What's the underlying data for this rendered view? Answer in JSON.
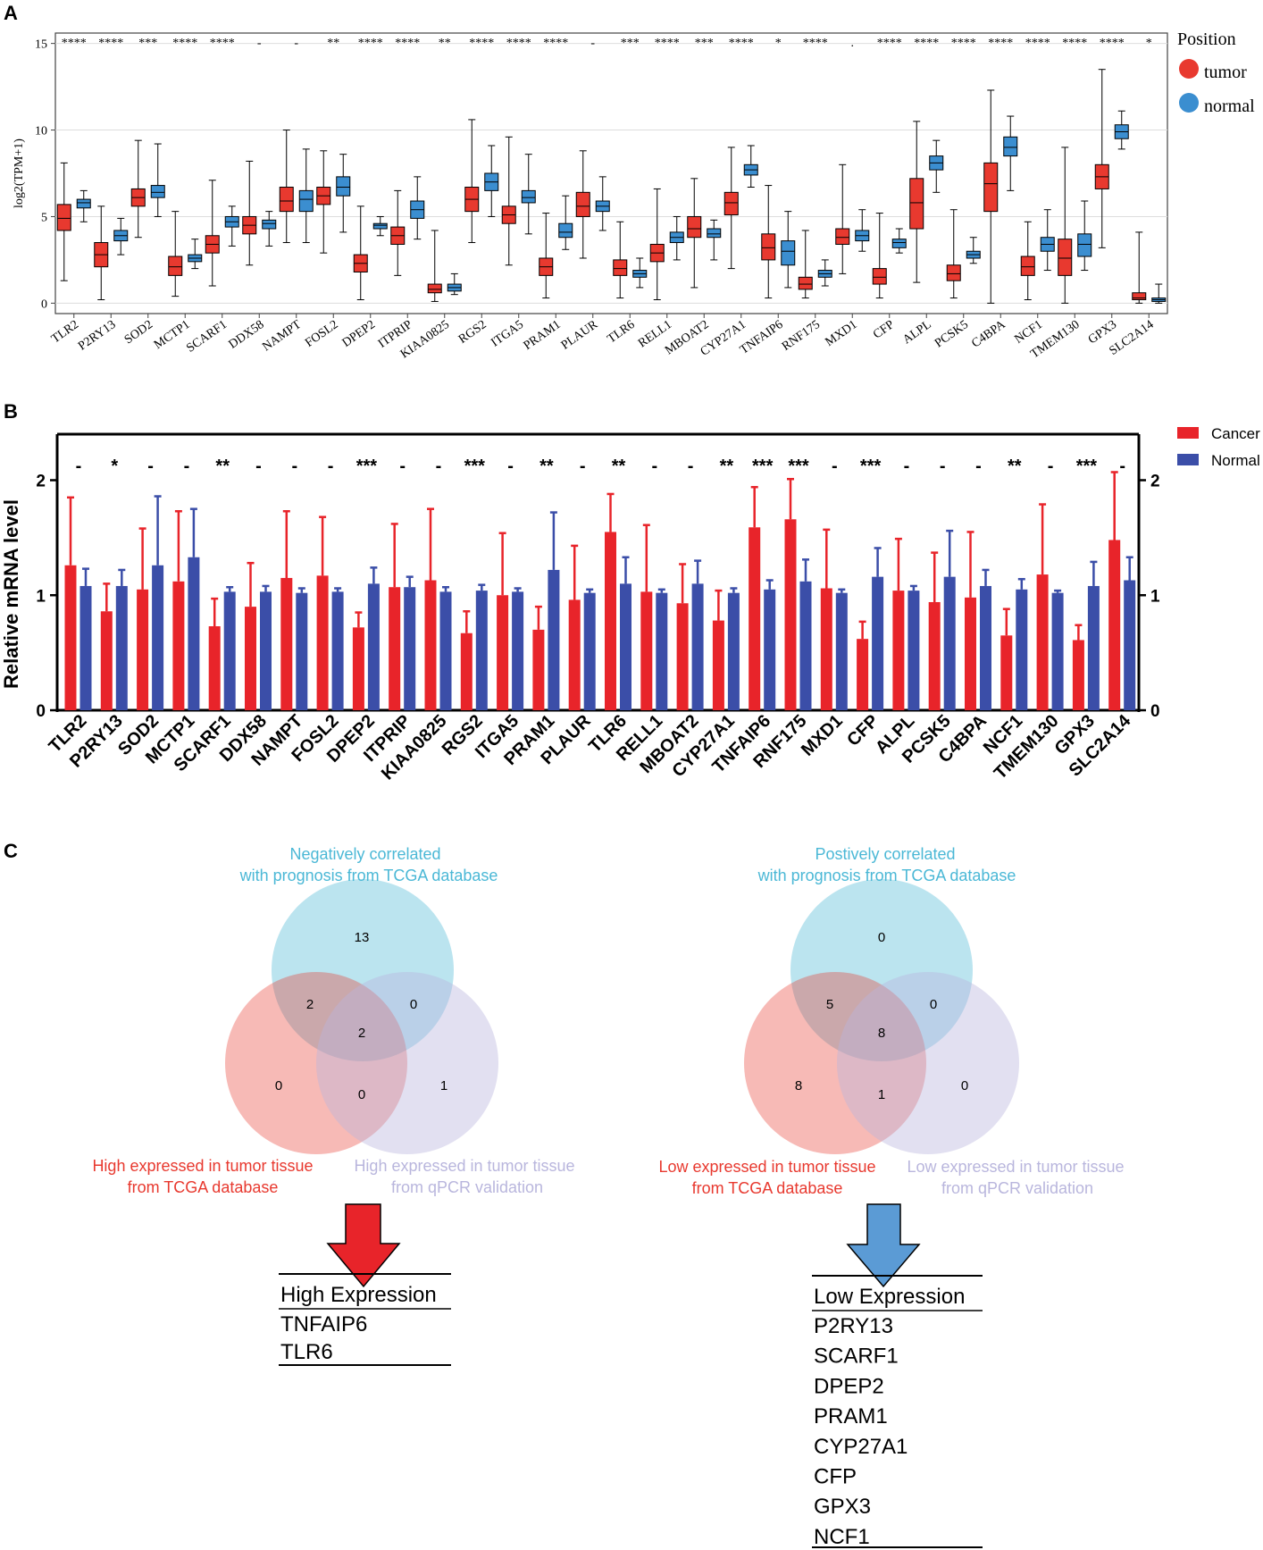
{
  "panels": {
    "A": {
      "letter": "A",
      "chart_data": {
        "type": "boxplot",
        "ylabel": "log2(TPM+1)",
        "ylim": [
          -0.6,
          15.6
        ],
        "yticks": [
          0,
          5,
          10,
          15
        ],
        "grid": true,
        "legend": {
          "title": "Position",
          "placement": "top-right outside",
          "entries": [
            {
              "name": "tumor",
              "color": "#e8392f"
            },
            {
              "name": "normal",
              "color": "#3b8ed0"
            }
          ]
        },
        "categories": [
          "TLR2",
          "P2RY13",
          "SOD2",
          "MCTP1",
          "SCARF1",
          "DDX58",
          "NAMPT",
          "FOSL2",
          "DPEP2",
          "ITPRIP",
          "KIAA0825",
          "RGS2",
          "ITGA5",
          "PRAM1",
          "PLAUR",
          "TLR6",
          "RELL1",
          "MBOAT2",
          "CYP27A1",
          "TNFAIP6",
          "RNF175",
          "MXD1",
          "CFP",
          "ALPL",
          "PCSK5",
          "C4BPA",
          "NCF1",
          "TMEM130",
          "GPX3",
          "SLC2A14"
        ],
        "significance": [
          "****",
          "****",
          "***",
          "****",
          "****",
          "-",
          "-",
          "**",
          "****",
          "****",
          "**",
          "****",
          "****",
          "****",
          "-",
          "***",
          "****",
          "***",
          "****",
          "*",
          "****",
          ".",
          "****",
          "****",
          "****",
          "****",
          "****",
          "****",
          "****",
          "*"
        ],
        "series": [
          {
            "name": "tumor",
            "color": "#e8392f",
            "boxes": [
              [
                1.3,
                4.2,
                4.9,
                5.7,
                8.1
              ],
              [
                0.2,
                2.1,
                2.8,
                3.5,
                5.6
              ],
              [
                3.8,
                5.6,
                6.1,
                6.6,
                9.4
              ],
              [
                0.4,
                1.6,
                2.1,
                2.7,
                5.3
              ],
              [
                1.0,
                2.9,
                3.4,
                3.9,
                7.1
              ],
              [
                2.2,
                4.0,
                4.5,
                5.0,
                8.2
              ],
              [
                3.5,
                5.3,
                5.9,
                6.7,
                10.0
              ],
              [
                2.9,
                5.7,
                6.2,
                6.7,
                8.8
              ],
              [
                0.2,
                1.8,
                2.3,
                2.8,
                5.6
              ],
              [
                1.6,
                3.4,
                3.9,
                4.4,
                6.5
              ],
              [
                0.1,
                0.6,
                0.8,
                1.1,
                4.2
              ],
              [
                3.5,
                5.3,
                6.0,
                6.7,
                10.6
              ],
              [
                2.2,
                4.6,
                5.1,
                5.6,
                9.6
              ],
              [
                0.3,
                1.6,
                2.1,
                2.6,
                5.2
              ],
              [
                2.6,
                5.0,
                5.6,
                6.4,
                8.8
              ],
              [
                0.3,
                1.6,
                2.0,
                2.5,
                4.7
              ],
              [
                0.2,
                2.4,
                2.9,
                3.4,
                6.6
              ],
              [
                0.9,
                3.8,
                4.3,
                5.0,
                7.2
              ],
              [
                2.0,
                5.1,
                5.8,
                6.4,
                9.0
              ],
              [
                0.3,
                2.5,
                3.2,
                4.0,
                6.8
              ],
              [
                0.3,
                0.8,
                1.1,
                1.5,
                4.2
              ],
              [
                1.7,
                3.4,
                3.8,
                4.3,
                8.0
              ],
              [
                0.3,
                1.1,
                1.5,
                2.0,
                5.2
              ],
              [
                1.2,
                4.3,
                5.8,
                7.2,
                10.5
              ],
              [
                0.3,
                1.3,
                1.7,
                2.2,
                5.4
              ],
              [
                0.0,
                5.3,
                6.9,
                8.1,
                12.3
              ],
              [
                0.2,
                1.6,
                2.1,
                2.7,
                4.7
              ],
              [
                0.0,
                1.6,
                2.6,
                3.7,
                9.0
              ],
              [
                3.2,
                6.6,
                7.3,
                8.0,
                13.5
              ],
              [
                0.0,
                0.2,
                0.3,
                0.6,
                4.1
              ]
            ]
          },
          {
            "name": "normal",
            "color": "#3b8ed0",
            "boxes": [
              [
                4.7,
                5.5,
                5.8,
                6.0,
                6.5
              ],
              [
                2.8,
                3.6,
                3.9,
                4.2,
                4.9
              ],
              [
                5.0,
                6.1,
                6.4,
                6.8,
                9.2
              ],
              [
                2.0,
                2.4,
                2.6,
                2.8,
                3.7
              ],
              [
                3.3,
                4.4,
                4.7,
                5.0,
                5.6
              ],
              [
                3.3,
                4.3,
                4.6,
                4.8,
                5.3
              ],
              [
                3.5,
                5.3,
                6.0,
                6.5,
                8.9
              ],
              [
                4.1,
                6.2,
                6.7,
                7.3,
                8.6
              ],
              [
                3.9,
                4.3,
                4.5,
                4.6,
                5.0
              ],
              [
                3.7,
                4.9,
                5.4,
                5.9,
                7.3
              ],
              [
                0.5,
                0.7,
                0.9,
                1.1,
                1.7
              ],
              [
                5.0,
                6.5,
                7.0,
                7.5,
                9.1
              ],
              [
                4.0,
                5.8,
                6.1,
                6.5,
                8.6
              ],
              [
                3.1,
                3.8,
                4.1,
                4.6,
                6.2
              ],
              [
                4.2,
                5.3,
                5.6,
                5.9,
                7.3
              ],
              [
                0.9,
                1.5,
                1.7,
                1.9,
                2.6
              ],
              [
                2.5,
                3.5,
                3.8,
                4.1,
                5.0
              ],
              [
                2.5,
                3.8,
                4.0,
                4.3,
                4.8
              ],
              [
                6.7,
                7.4,
                7.7,
                8.0,
                9.1
              ],
              [
                0.9,
                2.2,
                3.0,
                3.6,
                5.3
              ],
              [
                1.0,
                1.5,
                1.7,
                1.9,
                2.5
              ],
              [
                3.0,
                3.6,
                3.9,
                4.2,
                5.4
              ],
              [
                2.9,
                3.2,
                3.5,
                3.7,
                4.3
              ],
              [
                6.4,
                7.7,
                8.1,
                8.5,
                9.4
              ],
              [
                2.3,
                2.6,
                2.8,
                3.0,
                3.8
              ],
              [
                6.5,
                8.5,
                9.0,
                9.6,
                10.8
              ],
              [
                1.9,
                3.0,
                3.4,
                3.8,
                5.4
              ],
              [
                1.9,
                2.7,
                3.4,
                4.0,
                5.9
              ],
              [
                8.9,
                9.5,
                9.9,
                10.3,
                11.1
              ],
              [
                0.0,
                0.1,
                0.2,
                0.3,
                1.1
              ]
            ]
          }
        ]
      }
    },
    "B": {
      "letter": "B",
      "chart_data": {
        "type": "bar",
        "ylabel": "Relative mRNA level",
        "ylim": [
          0,
          2.4
        ],
        "yticks": [
          0,
          1,
          2
        ],
        "legend": {
          "placement": "top-right outside",
          "entries": [
            {
              "name": "Cancer",
              "color": "#e8242a"
            },
            {
              "name": "Normal",
              "color": "#3b4ea8"
            }
          ]
        },
        "categories": [
          "TLR2",
          "P2RY13",
          "SOD2",
          "MCTP1",
          "SCARF1",
          "DDX58",
          "NAMPT",
          "FOSL2",
          "DPEP2",
          "ITPRIP",
          "KIAA0825",
          "RGS2",
          "ITGA5",
          "PRAM1",
          "PLAUR",
          "TLR6",
          "RELL1",
          "MBOAT2",
          "CYP27A1",
          "TNFAIP6",
          "RNF175",
          "MXD1",
          "CFP",
          "ALPL",
          "PCSK5",
          "C4BPA",
          "NCF1",
          "TMEM130",
          "GPX3",
          "SLC2A14"
        ],
        "significance": [
          "-",
          "*",
          "-",
          "-",
          "**",
          "-",
          "-",
          "-",
          "***",
          "-",
          "-",
          "***",
          "-",
          "**",
          "-",
          "**",
          "-",
          "-",
          "**",
          "***",
          "***",
          "-",
          "***",
          "-",
          "-",
          "-",
          "**",
          "-",
          "***",
          "-"
        ],
        "series": [
          {
            "name": "Cancer",
            "color": "#e8242a",
            "values": [
              1.26,
              0.86,
              1.05,
              1.12,
              0.73,
              0.9,
              1.15,
              1.17,
              0.72,
              1.07,
              1.13,
              0.67,
              1.0,
              0.7,
              0.96,
              1.55,
              1.03,
              0.93,
              0.78,
              1.59,
              1.66,
              1.06,
              0.62,
              1.04,
              0.94,
              0.98,
              0.65,
              1.18,
              0.61,
              1.48
            ],
            "errors": [
              0.59,
              0.24,
              0.53,
              0.61,
              0.24,
              0.38,
              0.58,
              0.51,
              0.13,
              0.55,
              0.62,
              0.19,
              0.54,
              0.2,
              0.47,
              0.33,
              0.58,
              0.34,
              0.26,
              0.35,
              0.35,
              0.51,
              0.15,
              0.45,
              0.43,
              0.57,
              0.23,
              0.61,
              0.13,
              0.59
            ]
          },
          {
            "name": "Normal",
            "color": "#3b4ea8",
            "values": [
              1.08,
              1.08,
              1.26,
              1.33,
              1.03,
              1.03,
              1.02,
              1.03,
              1.1,
              1.07,
              1.03,
              1.04,
              1.03,
              1.22,
              1.02,
              1.1,
              1.02,
              1.1,
              1.02,
              1.05,
              1.12,
              1.02,
              1.16,
              1.04,
              1.16,
              1.08,
              1.05,
              1.02,
              1.08,
              1.13
            ],
            "errors": [
              0.15,
              0.14,
              0.6,
              0.42,
              0.04,
              0.05,
              0.04,
              0.03,
              0.14,
              0.09,
              0.04,
              0.05,
              0.03,
              0.5,
              0.03,
              0.23,
              0.03,
              0.2,
              0.04,
              0.08,
              0.19,
              0.03,
              0.25,
              0.04,
              0.4,
              0.14,
              0.09,
              0.02,
              0.21,
              0.2
            ]
          }
        ]
      }
    },
    "C": {
      "letter": "C",
      "left_venn": {
        "top_label": [
          "Negatively correlated",
          "with prognosis from TCGA database"
        ],
        "left_label": [
          "High expressed in tumor tissue",
          "from TCGA database"
        ],
        "right_label": [
          "High expressed in tumor tissue",
          "from qPCR validation"
        ],
        "counts": {
          "top": "13",
          "top_left": "2",
          "top_right": "0",
          "center": "2",
          "left": "0",
          "bottom": "0",
          "right": "1"
        }
      },
      "right_venn": {
        "top_label": [
          "Postively correlated",
          "with prognosis from TCGA database"
        ],
        "left_label": [
          "Low expressed in tumor tissue",
          "from TCGA database"
        ],
        "right_label": [
          "Low expressed in tumor tissue",
          "from qPCR validation"
        ],
        "counts": {
          "top": "0",
          "top_left": "5",
          "top_right": "0",
          "center": "8",
          "left": "8",
          "bottom": "1",
          "right": "0"
        }
      },
      "high_table": {
        "header": "High Expression",
        "genes": [
          "TNFAIP6",
          "TLR6"
        ]
      },
      "low_table": {
        "header": "Low Expression",
        "genes": [
          "P2RY13",
          "SCARF1",
          "DPEP2",
          "PRAM1",
          "CYP27A1",
          "CFP",
          "GPX3",
          "NCF1"
        ]
      },
      "colors": {
        "top": "#4bb8d6",
        "left": "#e8392f",
        "right": "#b9b6dd",
        "arrow_red": "#e8242a",
        "arrow_blue": "#5b9bd5"
      }
    }
  }
}
